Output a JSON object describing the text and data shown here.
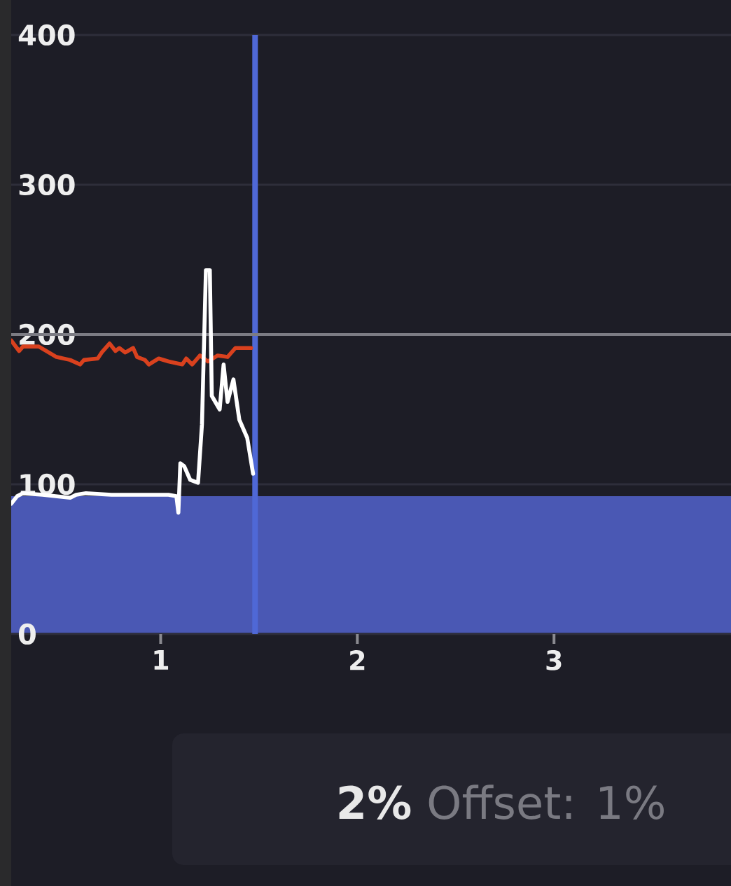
{
  "chart_data": {
    "type": "line",
    "series": [
      {
        "color": "#d9411e",
        "x": [
          0.24,
          0.28,
          0.3,
          0.38,
          0.47,
          0.54,
          0.59,
          0.61,
          0.68,
          0.7,
          0.74,
          0.77,
          0.79,
          0.82,
          0.86,
          0.88,
          0.92,
          0.94,
          0.99,
          1.04,
          1.11,
          1.13,
          1.16,
          1.2,
          1.24,
          1.29,
          1.34,
          1.38,
          1.46
        ],
        "values": [
          196,
          189,
          192,
          192,
          185,
          183,
          180,
          183,
          184,
          188,
          194,
          189,
          191,
          188,
          191,
          185,
          183,
          180,
          184,
          182,
          180,
          184,
          180,
          186,
          182,
          186,
          185,
          191,
          191
        ]
      },
      {
        "color": "#ffffff",
        "x": [
          0.24,
          0.27,
          0.3,
          0.4,
          0.54,
          0.57,
          0.62,
          0.75,
          0.89,
          1.04,
          1.08,
          1.09,
          1.1,
          1.12,
          1.15,
          1.19,
          1.21,
          1.23,
          1.25,
          1.26,
          1.3,
          1.32,
          1.34,
          1.37,
          1.4,
          1.44,
          1.47
        ],
        "values": [
          87,
          92,
          94,
          93,
          91,
          93,
          94,
          93,
          93,
          93,
          92,
          81,
          114,
          112,
          103,
          101,
          140,
          243,
          243,
          159,
          150,
          180,
          155,
          170,
          143,
          131,
          107
        ]
      }
    ],
    "xlim": [
      0.24,
      3.9
    ],
    "xticks": [
      1,
      2,
      3
    ],
    "ylim": [
      0,
      400
    ],
    "yticks": [
      0,
      100,
      200,
      300,
      400
    ],
    "grid": "y",
    "ref_lines": [
      {
        "axis": "x",
        "value": 1.48,
        "color": "#4f68d6"
      },
      {
        "axis": "y",
        "value": 200,
        "color": "#7c7c84"
      }
    ],
    "bands": [
      {
        "axis": "y",
        "from": 0,
        "to": 92,
        "color": "#4a58b4"
      }
    ],
    "annotations": [
      "2%",
      "Offset: 1%"
    ]
  }
}
